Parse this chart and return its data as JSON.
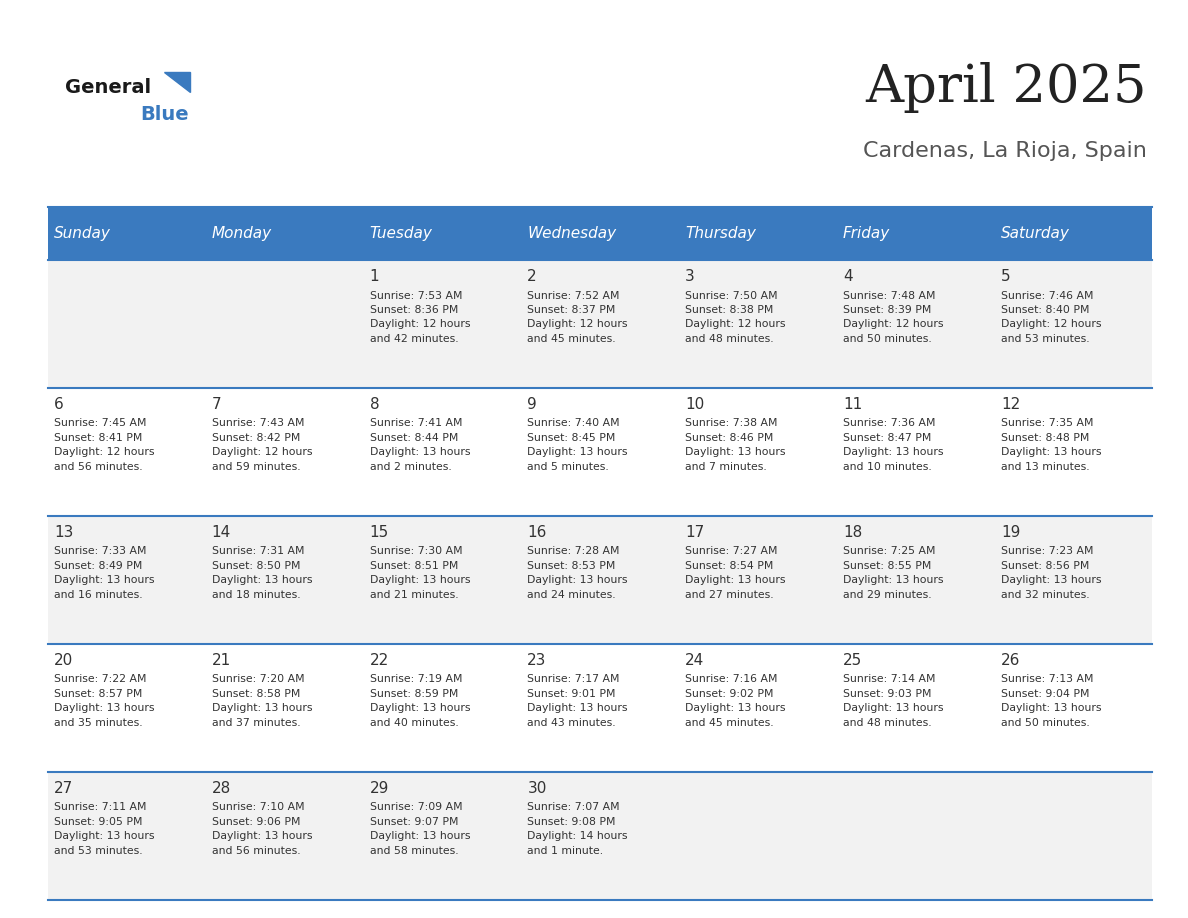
{
  "title": "April 2025",
  "subtitle": "Cardenas, La Rioja, Spain",
  "days_of_week": [
    "Sunday",
    "Monday",
    "Tuesday",
    "Wednesday",
    "Thursday",
    "Friday",
    "Saturday"
  ],
  "header_bg": "#3a7abf",
  "header_text": "#ffffff",
  "row_bg_odd": "#f2f2f2",
  "row_bg_even": "#ffffff",
  "divider_color": "#3a7abf",
  "day_num_color": "#333333",
  "cell_text_color": "#333333",
  "title_color": "#222222",
  "subtitle_color": "#555555",
  "calendar": [
    [
      {
        "day": null,
        "info": null
      },
      {
        "day": null,
        "info": null
      },
      {
        "day": 1,
        "info": "Sunrise: 7:53 AM\nSunset: 8:36 PM\nDaylight: 12 hours\nand 42 minutes."
      },
      {
        "day": 2,
        "info": "Sunrise: 7:52 AM\nSunset: 8:37 PM\nDaylight: 12 hours\nand 45 minutes."
      },
      {
        "day": 3,
        "info": "Sunrise: 7:50 AM\nSunset: 8:38 PM\nDaylight: 12 hours\nand 48 minutes."
      },
      {
        "day": 4,
        "info": "Sunrise: 7:48 AM\nSunset: 8:39 PM\nDaylight: 12 hours\nand 50 minutes."
      },
      {
        "day": 5,
        "info": "Sunrise: 7:46 AM\nSunset: 8:40 PM\nDaylight: 12 hours\nand 53 minutes."
      }
    ],
    [
      {
        "day": 6,
        "info": "Sunrise: 7:45 AM\nSunset: 8:41 PM\nDaylight: 12 hours\nand 56 minutes."
      },
      {
        "day": 7,
        "info": "Sunrise: 7:43 AM\nSunset: 8:42 PM\nDaylight: 12 hours\nand 59 minutes."
      },
      {
        "day": 8,
        "info": "Sunrise: 7:41 AM\nSunset: 8:44 PM\nDaylight: 13 hours\nand 2 minutes."
      },
      {
        "day": 9,
        "info": "Sunrise: 7:40 AM\nSunset: 8:45 PM\nDaylight: 13 hours\nand 5 minutes."
      },
      {
        "day": 10,
        "info": "Sunrise: 7:38 AM\nSunset: 8:46 PM\nDaylight: 13 hours\nand 7 minutes."
      },
      {
        "day": 11,
        "info": "Sunrise: 7:36 AM\nSunset: 8:47 PM\nDaylight: 13 hours\nand 10 minutes."
      },
      {
        "day": 12,
        "info": "Sunrise: 7:35 AM\nSunset: 8:48 PM\nDaylight: 13 hours\nand 13 minutes."
      }
    ],
    [
      {
        "day": 13,
        "info": "Sunrise: 7:33 AM\nSunset: 8:49 PM\nDaylight: 13 hours\nand 16 minutes."
      },
      {
        "day": 14,
        "info": "Sunrise: 7:31 AM\nSunset: 8:50 PM\nDaylight: 13 hours\nand 18 minutes."
      },
      {
        "day": 15,
        "info": "Sunrise: 7:30 AM\nSunset: 8:51 PM\nDaylight: 13 hours\nand 21 minutes."
      },
      {
        "day": 16,
        "info": "Sunrise: 7:28 AM\nSunset: 8:53 PM\nDaylight: 13 hours\nand 24 minutes."
      },
      {
        "day": 17,
        "info": "Sunrise: 7:27 AM\nSunset: 8:54 PM\nDaylight: 13 hours\nand 27 minutes."
      },
      {
        "day": 18,
        "info": "Sunrise: 7:25 AM\nSunset: 8:55 PM\nDaylight: 13 hours\nand 29 minutes."
      },
      {
        "day": 19,
        "info": "Sunrise: 7:23 AM\nSunset: 8:56 PM\nDaylight: 13 hours\nand 32 minutes."
      }
    ],
    [
      {
        "day": 20,
        "info": "Sunrise: 7:22 AM\nSunset: 8:57 PM\nDaylight: 13 hours\nand 35 minutes."
      },
      {
        "day": 21,
        "info": "Sunrise: 7:20 AM\nSunset: 8:58 PM\nDaylight: 13 hours\nand 37 minutes."
      },
      {
        "day": 22,
        "info": "Sunrise: 7:19 AM\nSunset: 8:59 PM\nDaylight: 13 hours\nand 40 minutes."
      },
      {
        "day": 23,
        "info": "Sunrise: 7:17 AM\nSunset: 9:01 PM\nDaylight: 13 hours\nand 43 minutes."
      },
      {
        "day": 24,
        "info": "Sunrise: 7:16 AM\nSunset: 9:02 PM\nDaylight: 13 hours\nand 45 minutes."
      },
      {
        "day": 25,
        "info": "Sunrise: 7:14 AM\nSunset: 9:03 PM\nDaylight: 13 hours\nand 48 minutes."
      },
      {
        "day": 26,
        "info": "Sunrise: 7:13 AM\nSunset: 9:04 PM\nDaylight: 13 hours\nand 50 minutes."
      }
    ],
    [
      {
        "day": 27,
        "info": "Sunrise: 7:11 AM\nSunset: 9:05 PM\nDaylight: 13 hours\nand 53 minutes."
      },
      {
        "day": 28,
        "info": "Sunrise: 7:10 AM\nSunset: 9:06 PM\nDaylight: 13 hours\nand 56 minutes."
      },
      {
        "day": 29,
        "info": "Sunrise: 7:09 AM\nSunset: 9:07 PM\nDaylight: 13 hours\nand 58 minutes."
      },
      {
        "day": 30,
        "info": "Sunrise: 7:07 AM\nSunset: 9:08 PM\nDaylight: 14 hours\nand 1 minute."
      },
      {
        "day": null,
        "info": null
      },
      {
        "day": null,
        "info": null
      },
      {
        "day": null,
        "info": null
      }
    ]
  ]
}
